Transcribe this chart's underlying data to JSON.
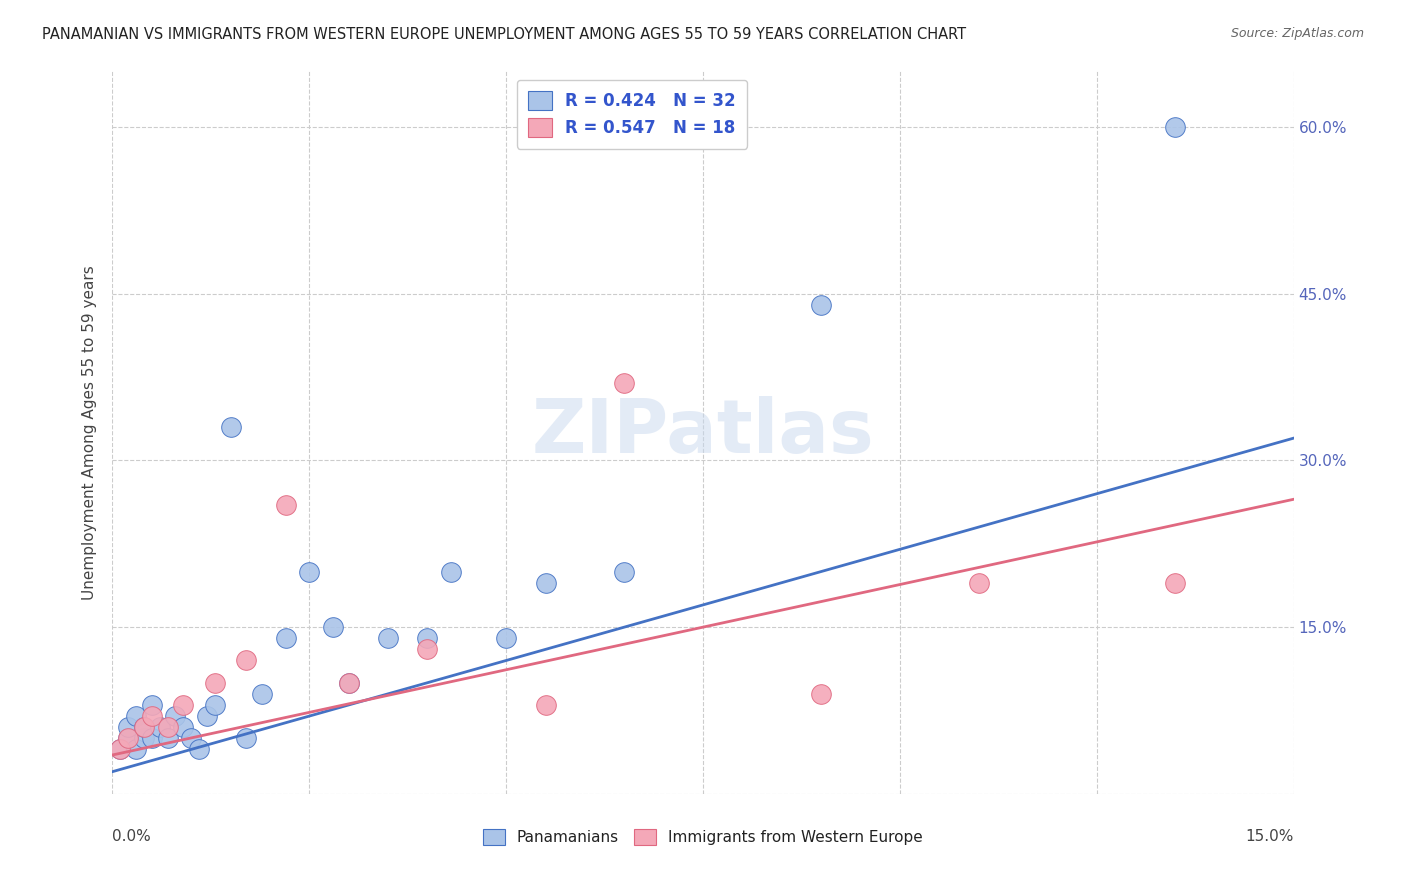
{
  "title": "PANAMANIAN VS IMMIGRANTS FROM WESTERN EUROPE UNEMPLOYMENT AMONG AGES 55 TO 59 YEARS CORRELATION CHART",
  "source": "Source: ZipAtlas.com",
  "ylabel": "Unemployment Among Ages 55 to 59 years",
  "xlim": [
    0.0,
    0.15
  ],
  "ylim": [
    0.0,
    0.65
  ],
  "blue_color": "#aac4e8",
  "pink_color": "#f4a8b8",
  "blue_line_color": "#4472c4",
  "pink_line_color": "#e06880",
  "blue_scatter_x": [
    0.001,
    0.002,
    0.002,
    0.003,
    0.003,
    0.004,
    0.004,
    0.005,
    0.005,
    0.006,
    0.007,
    0.008,
    0.009,
    0.01,
    0.011,
    0.012,
    0.013,
    0.015,
    0.017,
    0.019,
    0.022,
    0.025,
    0.028,
    0.03,
    0.035,
    0.04,
    0.043,
    0.05,
    0.055,
    0.065,
    0.09,
    0.135
  ],
  "blue_scatter_y": [
    0.04,
    0.05,
    0.06,
    0.04,
    0.07,
    0.05,
    0.06,
    0.05,
    0.08,
    0.06,
    0.05,
    0.07,
    0.06,
    0.05,
    0.04,
    0.07,
    0.08,
    0.33,
    0.05,
    0.09,
    0.14,
    0.2,
    0.15,
    0.1,
    0.14,
    0.14,
    0.2,
    0.14,
    0.19,
    0.2,
    0.44,
    0.6
  ],
  "pink_scatter_x": [
    0.001,
    0.002,
    0.004,
    0.005,
    0.007,
    0.009,
    0.013,
    0.017,
    0.022,
    0.03,
    0.04,
    0.055,
    0.065,
    0.09,
    0.11,
    0.135
  ],
  "pink_scatter_y": [
    0.04,
    0.05,
    0.06,
    0.07,
    0.06,
    0.08,
    0.1,
    0.12,
    0.26,
    0.1,
    0.13,
    0.08,
    0.37,
    0.09,
    0.19,
    0.19
  ],
  "blue_line_x": [
    0.0,
    0.15
  ],
  "blue_line_y": [
    0.02,
    0.32
  ],
  "pink_line_x": [
    0.0,
    0.15
  ],
  "pink_line_y": [
    0.035,
    0.265
  ]
}
